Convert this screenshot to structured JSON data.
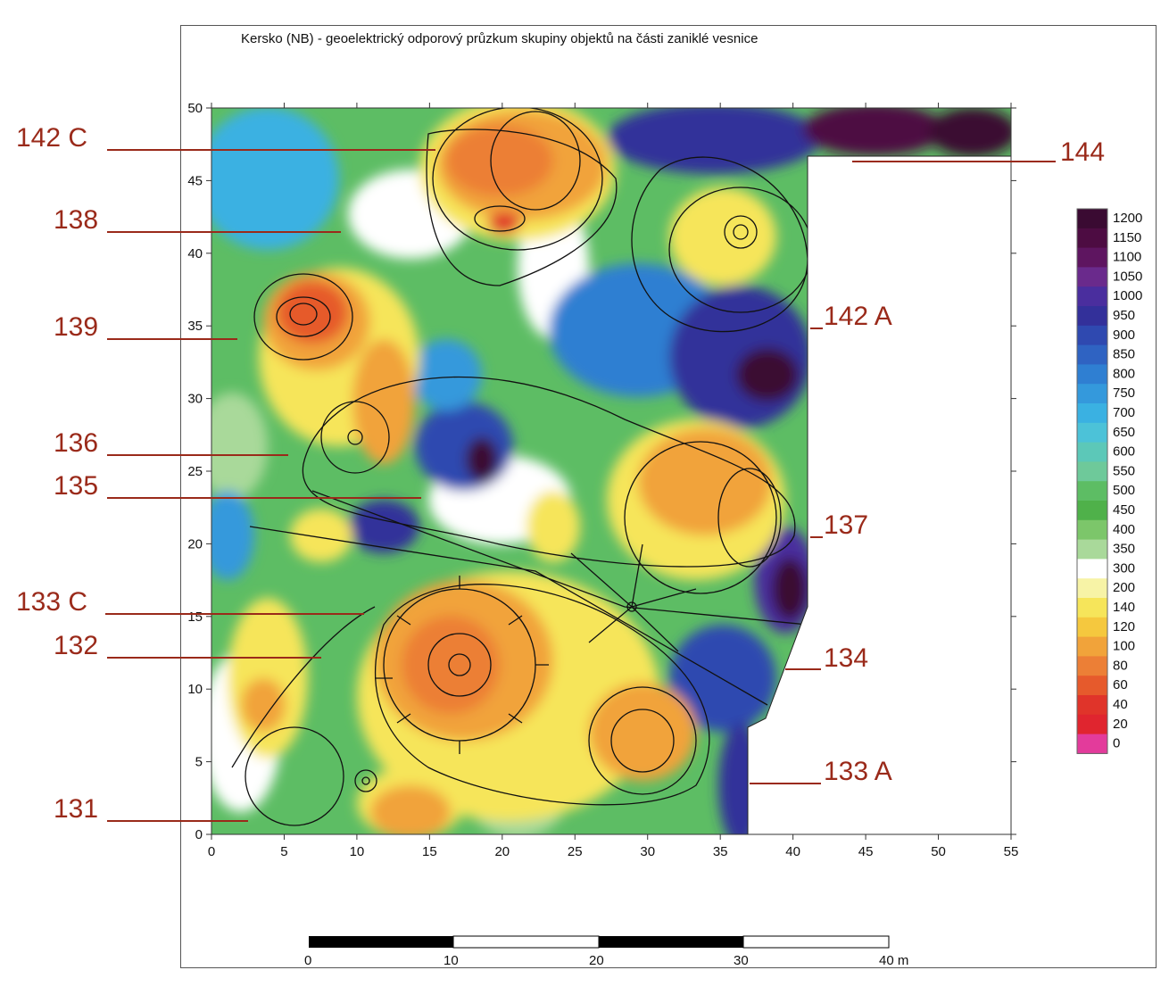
{
  "title": "Kersko (NB) - geoelektrický odporový průzkum skupiny objektů na části zaniklé vesnice",
  "axes": {
    "x_ticks": [
      "0",
      "5",
      "10",
      "15",
      "20",
      "25",
      "30",
      "35",
      "40",
      "45",
      "50",
      "55"
    ],
    "y_ticks": [
      "0",
      "5",
      "10",
      "15",
      "20",
      "25",
      "30",
      "35",
      "40",
      "45",
      "50"
    ]
  },
  "legend": {
    "values": [
      "1200",
      "1150",
      "1100",
      "1050",
      "1000",
      "950",
      "900",
      "850",
      "800",
      "750",
      "700",
      "650",
      "600",
      "550",
      "500",
      "450",
      "400",
      "350",
      "300",
      "200",
      "140",
      "120",
      "100",
      "80",
      "60",
      "40",
      "20",
      "0"
    ],
    "colors": [
      "#3a0a32",
      "#4d0c42",
      "#5e1560",
      "#6a2a8c",
      "#4a2e9e",
      "#33309a",
      "#2f49b0",
      "#2f63c2",
      "#2f7fd2",
      "#3499dc",
      "#3ab1e2",
      "#4cc2d8",
      "#5cc8b8",
      "#6ec99a",
      "#5dbd64",
      "#4fb14a",
      "#7cc66a",
      "#a9d99a",
      "#ffffff",
      "#f7f3a6",
      "#f6e55a",
      "#f5c83e",
      "#f1a33a",
      "#ec7f36",
      "#e65a2c",
      "#e0342a",
      "#e0252f",
      "#e33b9b"
    ]
  },
  "scale_bar": {
    "labels": [
      "0",
      "10",
      "20",
      "30",
      "40 m"
    ]
  },
  "callouts": {
    "c142c": "142 C",
    "c138": "138",
    "c139": "139",
    "c136": "136",
    "c135": "135",
    "c133c": "133 C",
    "c132": "132",
    "c131": "131",
    "c144": "144",
    "c142a": "142 A",
    "c137": "137",
    "c134": "134",
    "c133a": "133 A"
  }
}
